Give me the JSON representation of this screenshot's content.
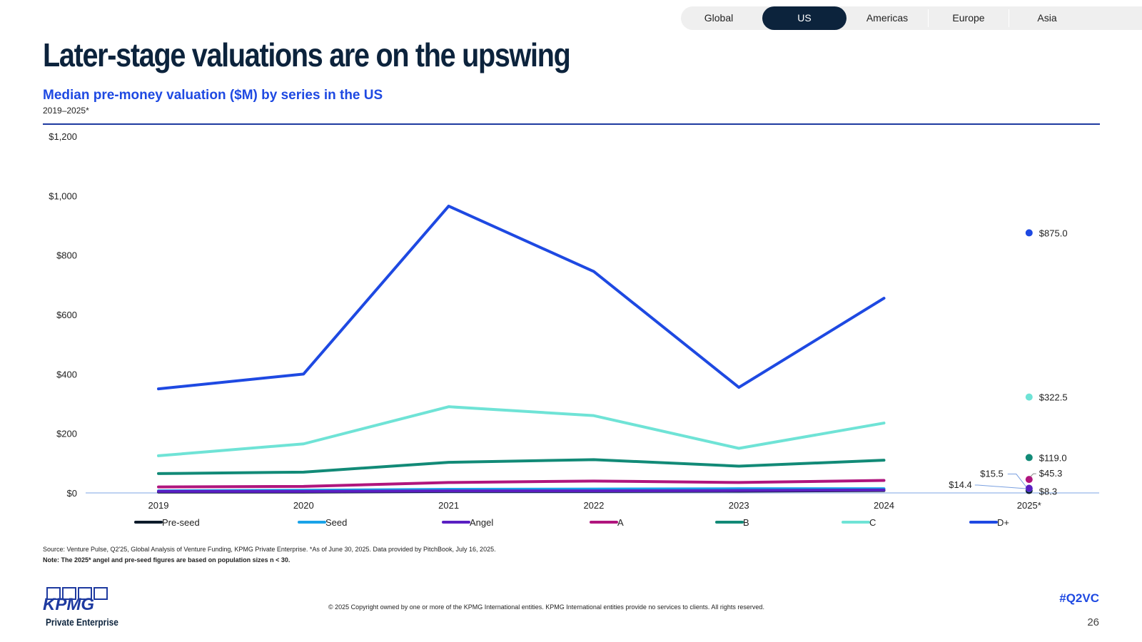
{
  "tabs": [
    {
      "label": "Global",
      "active": false
    },
    {
      "label": "US",
      "active": true
    },
    {
      "label": "Americas",
      "active": false
    },
    {
      "label": "Europe",
      "active": false
    },
    {
      "label": "Asia",
      "active": false
    }
  ],
  "page_title": "Later-stage valuations are on the upswing",
  "chart_data": {
    "type": "line",
    "title": "Median pre-money valuation ($M) by series in the US",
    "subtitle": "2019–2025*",
    "categories": [
      "2019",
      "2020",
      "2021",
      "2022",
      "2023",
      "2024",
      "2025*"
    ],
    "ylim": [
      0,
      1200
    ],
    "yticks": [
      0,
      200,
      400,
      600,
      800,
      1000,
      1200
    ],
    "ytick_labels": [
      "$0",
      "$200",
      "$400",
      "$600",
      "$800",
      "$1,000",
      "$1,200"
    ],
    "grid": false,
    "legend_position": "bottom",
    "series": [
      {
        "name": "Pre-seed",
        "color": "#0d1b2a",
        "values": [
          3,
          3,
          5,
          5,
          6,
          8,
          8.3
        ],
        "end_label": "$8.3"
      },
      {
        "name": "Seed",
        "color": "#1aa3e8",
        "values": [
          7,
          9,
          12,
          13,
          14,
          14,
          14.4
        ],
        "end_label": "$14.4"
      },
      {
        "name": "Angel",
        "color": "#5a1fc2",
        "values": [
          5,
          5,
          7,
          7,
          8,
          10,
          15.5
        ],
        "end_label": "$15.5"
      },
      {
        "name": "A",
        "color": "#b0157d",
        "values": [
          20,
          22,
          35,
          40,
          35,
          42,
          45.3
        ],
        "end_label": "$45.3"
      },
      {
        "name": "B",
        "color": "#128a77",
        "values": [
          65,
          70,
          103,
          112,
          90,
          110,
          119.0
        ],
        "end_label": "$119.0"
      },
      {
        "name": "C",
        "color": "#6fe3d6",
        "values": [
          125,
          165,
          290,
          260,
          150,
          235,
          322.5
        ],
        "end_label": "$322.5"
      },
      {
        "name": "D+",
        "color": "#1e49e2",
        "values": [
          350,
          400,
          965,
          745,
          355,
          655,
          875.0
        ],
        "end_label": "$875.0"
      }
    ]
  },
  "footer": {
    "source": "Source: Venture Pulse, Q2'25, Global Analysis of Venture Funding, KPMG Private Enterprise. *As of June 30, 2025. Data provided by PitchBook, July 16, 2025.",
    "note": "Note: The 2025* angel and pre-seed figures are based on population sizes n < 30.",
    "copyright": "© 2025 Copyright owned by one or more of the KPMG International entities. KPMG International entities provide no services to clients. All rights reserved.",
    "hashtag": "#Q2VC",
    "page_number": "26",
    "logo_text": "KPMG",
    "logo_subtext": "Private Enterprise"
  },
  "colors": {
    "navy": "#0c233c",
    "accent_blue": "#1e49e2",
    "axis_line": "#a9c4ee"
  }
}
